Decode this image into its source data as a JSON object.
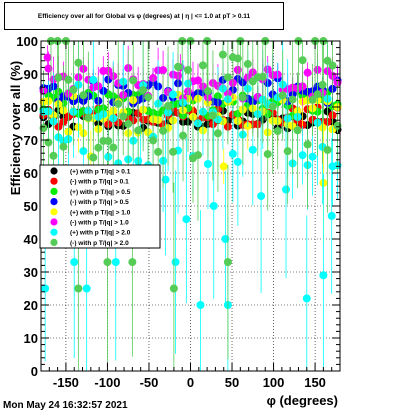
{
  "chart_data": {
    "type": "scatter",
    "title": "Efficiency over all for Global vs φ (degrees) at | η | <= 1.0 at pT > 0.11",
    "xlabel": "φ (degrees)",
    "ylabel": "Efficiency over all (%)",
    "xlim": [
      -180,
      180
    ],
    "ylim": [
      0,
      100
    ],
    "x_ticks": [
      -150,
      -100,
      -50,
      0,
      50,
      100,
      150
    ],
    "y_ticks": [
      0,
      10,
      20,
      30,
      40,
      50,
      60,
      70,
      80,
      90,
      100
    ],
    "grid": true,
    "legend_position": "left-middle",
    "series": [
      {
        "name": "(+) with p T/|q| > 0.1",
        "color": "#000000",
        "level": 76,
        "spread": 3,
        "err": 3,
        "outliers": []
      },
      {
        "name": "(-) with p T/|q| > 0.1",
        "color": "#ff0000",
        "level": 77,
        "spread": 3,
        "err": 3,
        "outliers": []
      },
      {
        "name": "(+) with p T/|q| > 0.5",
        "color": "#00ee00",
        "level": 81,
        "spread": 4,
        "err": 4,
        "outliers": []
      },
      {
        "name": "(-) with p T/|q| > 0.5",
        "color": "#0000ff",
        "level": 85,
        "spread": 4,
        "err": 4,
        "outliers": []
      },
      {
        "name": "(+) with p T/|q| > 1.0",
        "color": "#ffff00",
        "level": 78,
        "spread": 6,
        "err": 6,
        "outliers": [
          [
            -120,
            65
          ],
          [
            160,
            57
          ],
          [
            40,
            62
          ]
        ]
      },
      {
        "name": "(-) with p T/|q| > 1.0",
        "color": "#ff00ff",
        "level": 87,
        "spread": 5,
        "err": 5,
        "outliers": [
          [
            -172,
            95
          ],
          [
            -12,
            92
          ]
        ]
      },
      {
        "name": "(+) with p T/|q| > 2.0",
        "color": "#00ffff",
        "level": 76,
        "spread": 14,
        "err": 14,
        "outliers": [
          [
            -175,
            25
          ],
          [
            -140,
            33
          ],
          [
            -125,
            25
          ],
          [
            -90,
            33
          ],
          [
            -60,
            60
          ],
          [
            -30,
            58
          ],
          [
            -18,
            33
          ],
          [
            -5,
            46
          ],
          [
            12,
            20
          ],
          [
            28,
            50
          ],
          [
            42,
            40
          ],
          [
            45,
            20
          ],
          [
            85,
            53
          ],
          [
            115,
            55
          ],
          [
            140,
            22
          ],
          [
            160,
            29
          ],
          [
            170,
            47
          ]
        ]
      },
      {
        "name": "(-) with p T/|q| > 2.0",
        "color": "#55cc55",
        "level": 80,
        "spread": 16,
        "err": 18,
        "outliers": [
          [
            -168,
            100
          ],
          [
            -160,
            100
          ],
          [
            -150,
            100
          ],
          [
            -135,
            25
          ],
          [
            -100,
            33
          ],
          [
            -70,
            33
          ],
          [
            -20,
            25
          ],
          [
            -10,
            100
          ],
          [
            0,
            100
          ],
          [
            20,
            100
          ],
          [
            45,
            33
          ],
          [
            60,
            100
          ],
          [
            90,
            100
          ],
          [
            130,
            100
          ],
          [
            150,
            100
          ],
          [
            160,
            100
          ],
          [
            165,
            67
          ]
        ]
      }
    ]
  },
  "footer": {
    "datestamp": "Mon May 24 16:32:57 2021"
  }
}
